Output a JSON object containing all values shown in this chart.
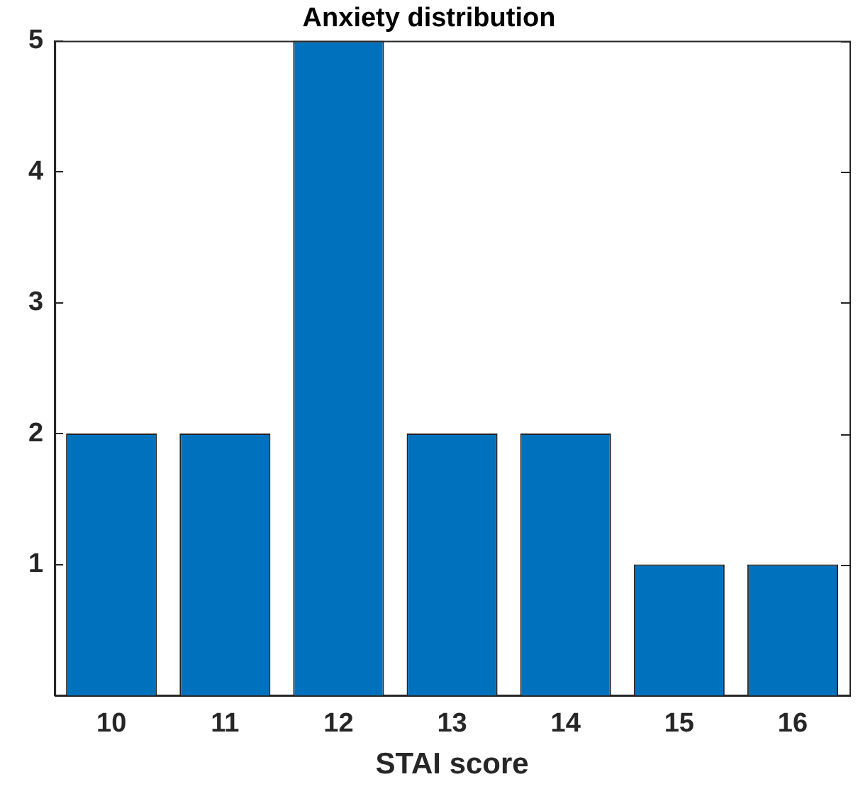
{
  "chart_data": {
    "type": "bar",
    "title": "Anxiety distribution",
    "xlabel": "STAI score",
    "categories": [
      "10",
      "11",
      "12",
      "13",
      "14",
      "15",
      "16"
    ],
    "values": [
      2,
      2,
      5,
      2,
      2,
      1,
      1
    ],
    "color": "#0072bd",
    "ylim": [
      0,
      5
    ],
    "yticks": [
      1,
      2,
      3,
      4,
      5
    ],
    "grid": false,
    "legend": false
  }
}
